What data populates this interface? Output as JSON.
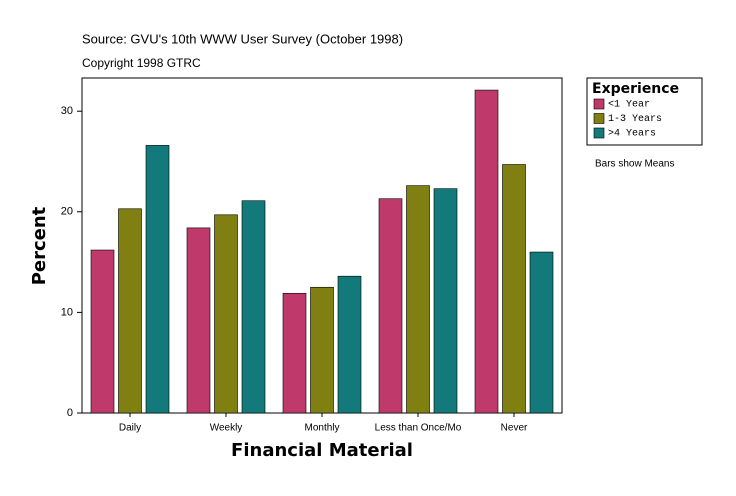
{
  "chart_data": {
    "type": "bar",
    "title": "Source: GVU's 10th WWW User Survey (October 1998)",
    "subtitle": "Copyright 1998 GTRC",
    "x_label": "Financial Material",
    "y_label": "Percent",
    "annotation": "Bars show Means",
    "legend_title": "Experience",
    "legend_position": "right",
    "categories": [
      "Daily",
      "Weekly",
      "Monthly",
      "Less than Once/Mo",
      "Never"
    ],
    "series": [
      {
        "name": "<1 Year",
        "color": "#bf3a6a",
        "values": [
          16.2,
          18.4,
          11.9,
          21.3,
          32.1
        ]
      },
      {
        "name": "1-3 Years",
        "color": "#808012",
        "values": [
          20.3,
          19.7,
          12.5,
          22.6,
          24.7
        ]
      },
      {
        "name": ">4 Years",
        "color": "#127a7a",
        "values": [
          26.6,
          21.1,
          13.6,
          22.3,
          16.0
        ]
      }
    ],
    "ylim": [
      0,
      33.3
    ],
    "yticks": [
      0,
      10,
      20,
      30
    ],
    "grid": false
  }
}
